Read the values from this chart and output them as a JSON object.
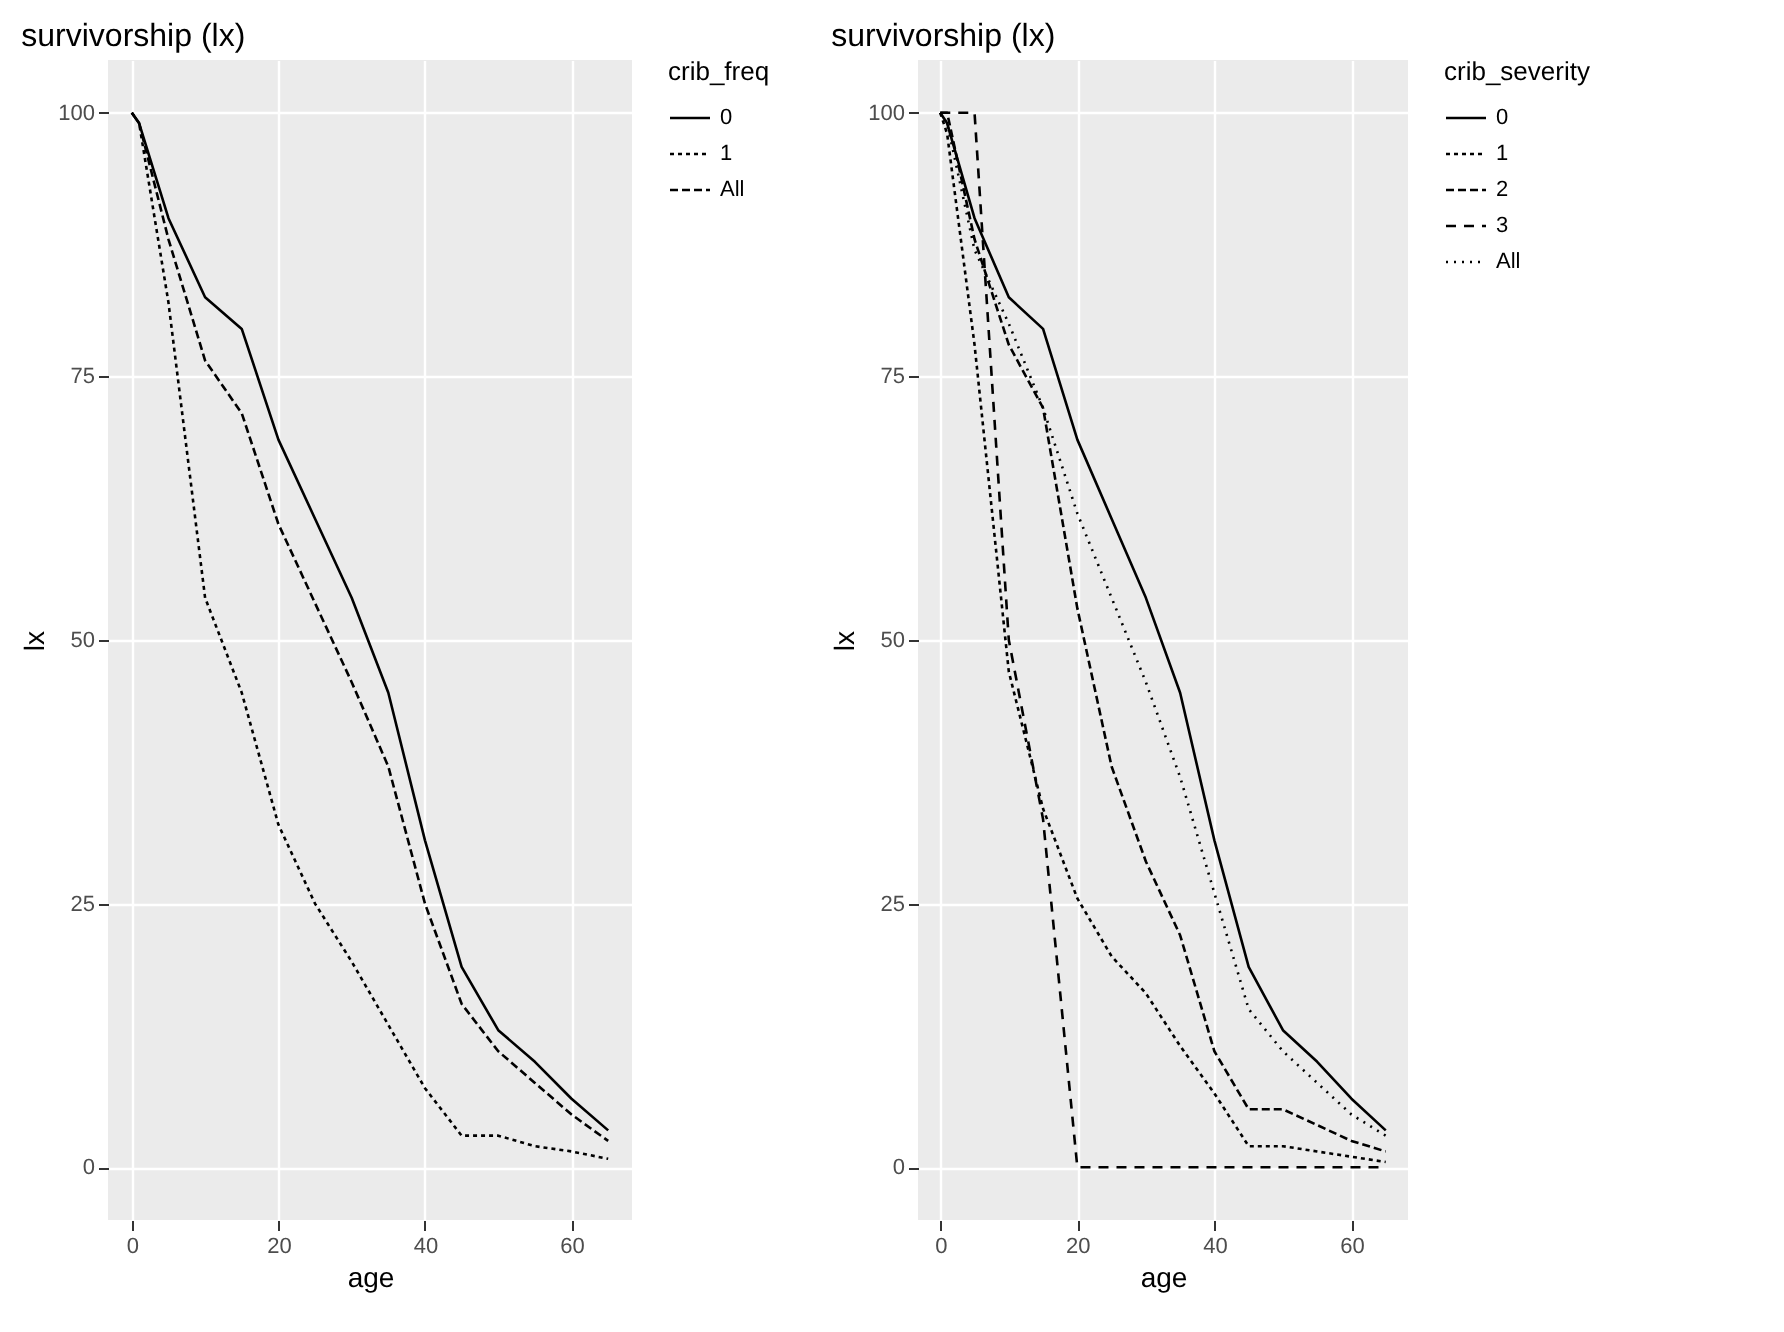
{
  "chart_data": [
    {
      "type": "line",
      "title": "survivorship (lx)",
      "xlabel": "age",
      "ylabel": "lx",
      "legend_title": "crib_freq",
      "legend": "right",
      "grid": true,
      "x": [
        0,
        1,
        5,
        10,
        15,
        20,
        25,
        30,
        35,
        40,
        45,
        50,
        55,
        60,
        65
      ],
      "xlim": [
        -3.25,
        68.25
      ],
      "xticks": [
        0,
        20,
        40,
        60
      ],
      "ylim": [
        -5,
        105
      ],
      "yticks": [
        0,
        25,
        50,
        75,
        100
      ],
      "series": [
        {
          "name": "0",
          "color": "#000000",
          "line_style": "solid",
          "values": [
            100,
            99,
            90,
            82.5,
            79.5,
            69,
            61.5,
            54,
            45,
            31,
            19,
            13,
            10,
            6.5,
            3.5
          ]
        },
        {
          "name": "1",
          "color": "#000000",
          "line_style": "dotted",
          "values": [
            100,
            99,
            82,
            54,
            45,
            32.5,
            25,
            19.5,
            13.5,
            7.5,
            3,
            3,
            2,
            1.5,
            0.8
          ]
        },
        {
          "name": "All",
          "color": "#000000",
          "line_style": "dashed",
          "values": [
            100,
            99,
            88,
            76.5,
            71.5,
            61,
            53.5,
            46,
            38,
            25,
            15.5,
            11,
            8,
            5,
            2.5
          ]
        }
      ]
    },
    {
      "type": "line",
      "title": "survivorship (lx)",
      "xlabel": "age",
      "ylabel": "lx",
      "legend_title": "crib_severity",
      "legend": "right",
      "grid": true,
      "x": [
        0,
        1,
        5,
        10,
        15,
        20,
        25,
        30,
        35,
        40,
        45,
        50,
        55,
        60,
        65
      ],
      "xlim": [
        -3.25,
        68.25
      ],
      "xticks": [
        0,
        20,
        40,
        60
      ],
      "ylim": [
        -5,
        105
      ],
      "yticks": [
        0,
        25,
        50,
        75,
        100
      ],
      "series": [
        {
          "name": "0",
          "color": "#000000",
          "line_style": "solid",
          "values": [
            100,
            99,
            90,
            82.5,
            79.5,
            69,
            61.5,
            54,
            45,
            31,
            19,
            13,
            10,
            6.5,
            3.5
          ]
        },
        {
          "name": "1",
          "color": "#000000",
          "line_style": "dotted",
          "values": [
            100,
            98,
            78,
            47,
            34,
            25.5,
            20,
            16.5,
            11.5,
            7,
            2,
            2,
            1.5,
            1,
            0.5
          ]
        },
        {
          "name": "2",
          "color": "#000000",
          "line_style": "dashed",
          "values": [
            100,
            100,
            88,
            78,
            72,
            53,
            38,
            29,
            22,
            11,
            5.5,
            5.5,
            4,
            2.5,
            1.5
          ]
        },
        {
          "name": "3",
          "color": "#000000",
          "line_style": "dashed",
          "values": [
            100,
            100,
            100,
            50,
            33,
            0,
            0,
            0,
            0,
            0,
            0,
            0,
            0,
            0,
            0
          ]
        },
        {
          "name": "All",
          "color": "#000000",
          "line_style": "dotted",
          "values": [
            100,
            99,
            87,
            80,
            72,
            62,
            54,
            46,
            37,
            26,
            15,
            11,
            8,
            5,
            3
          ]
        }
      ]
    }
  ]
}
